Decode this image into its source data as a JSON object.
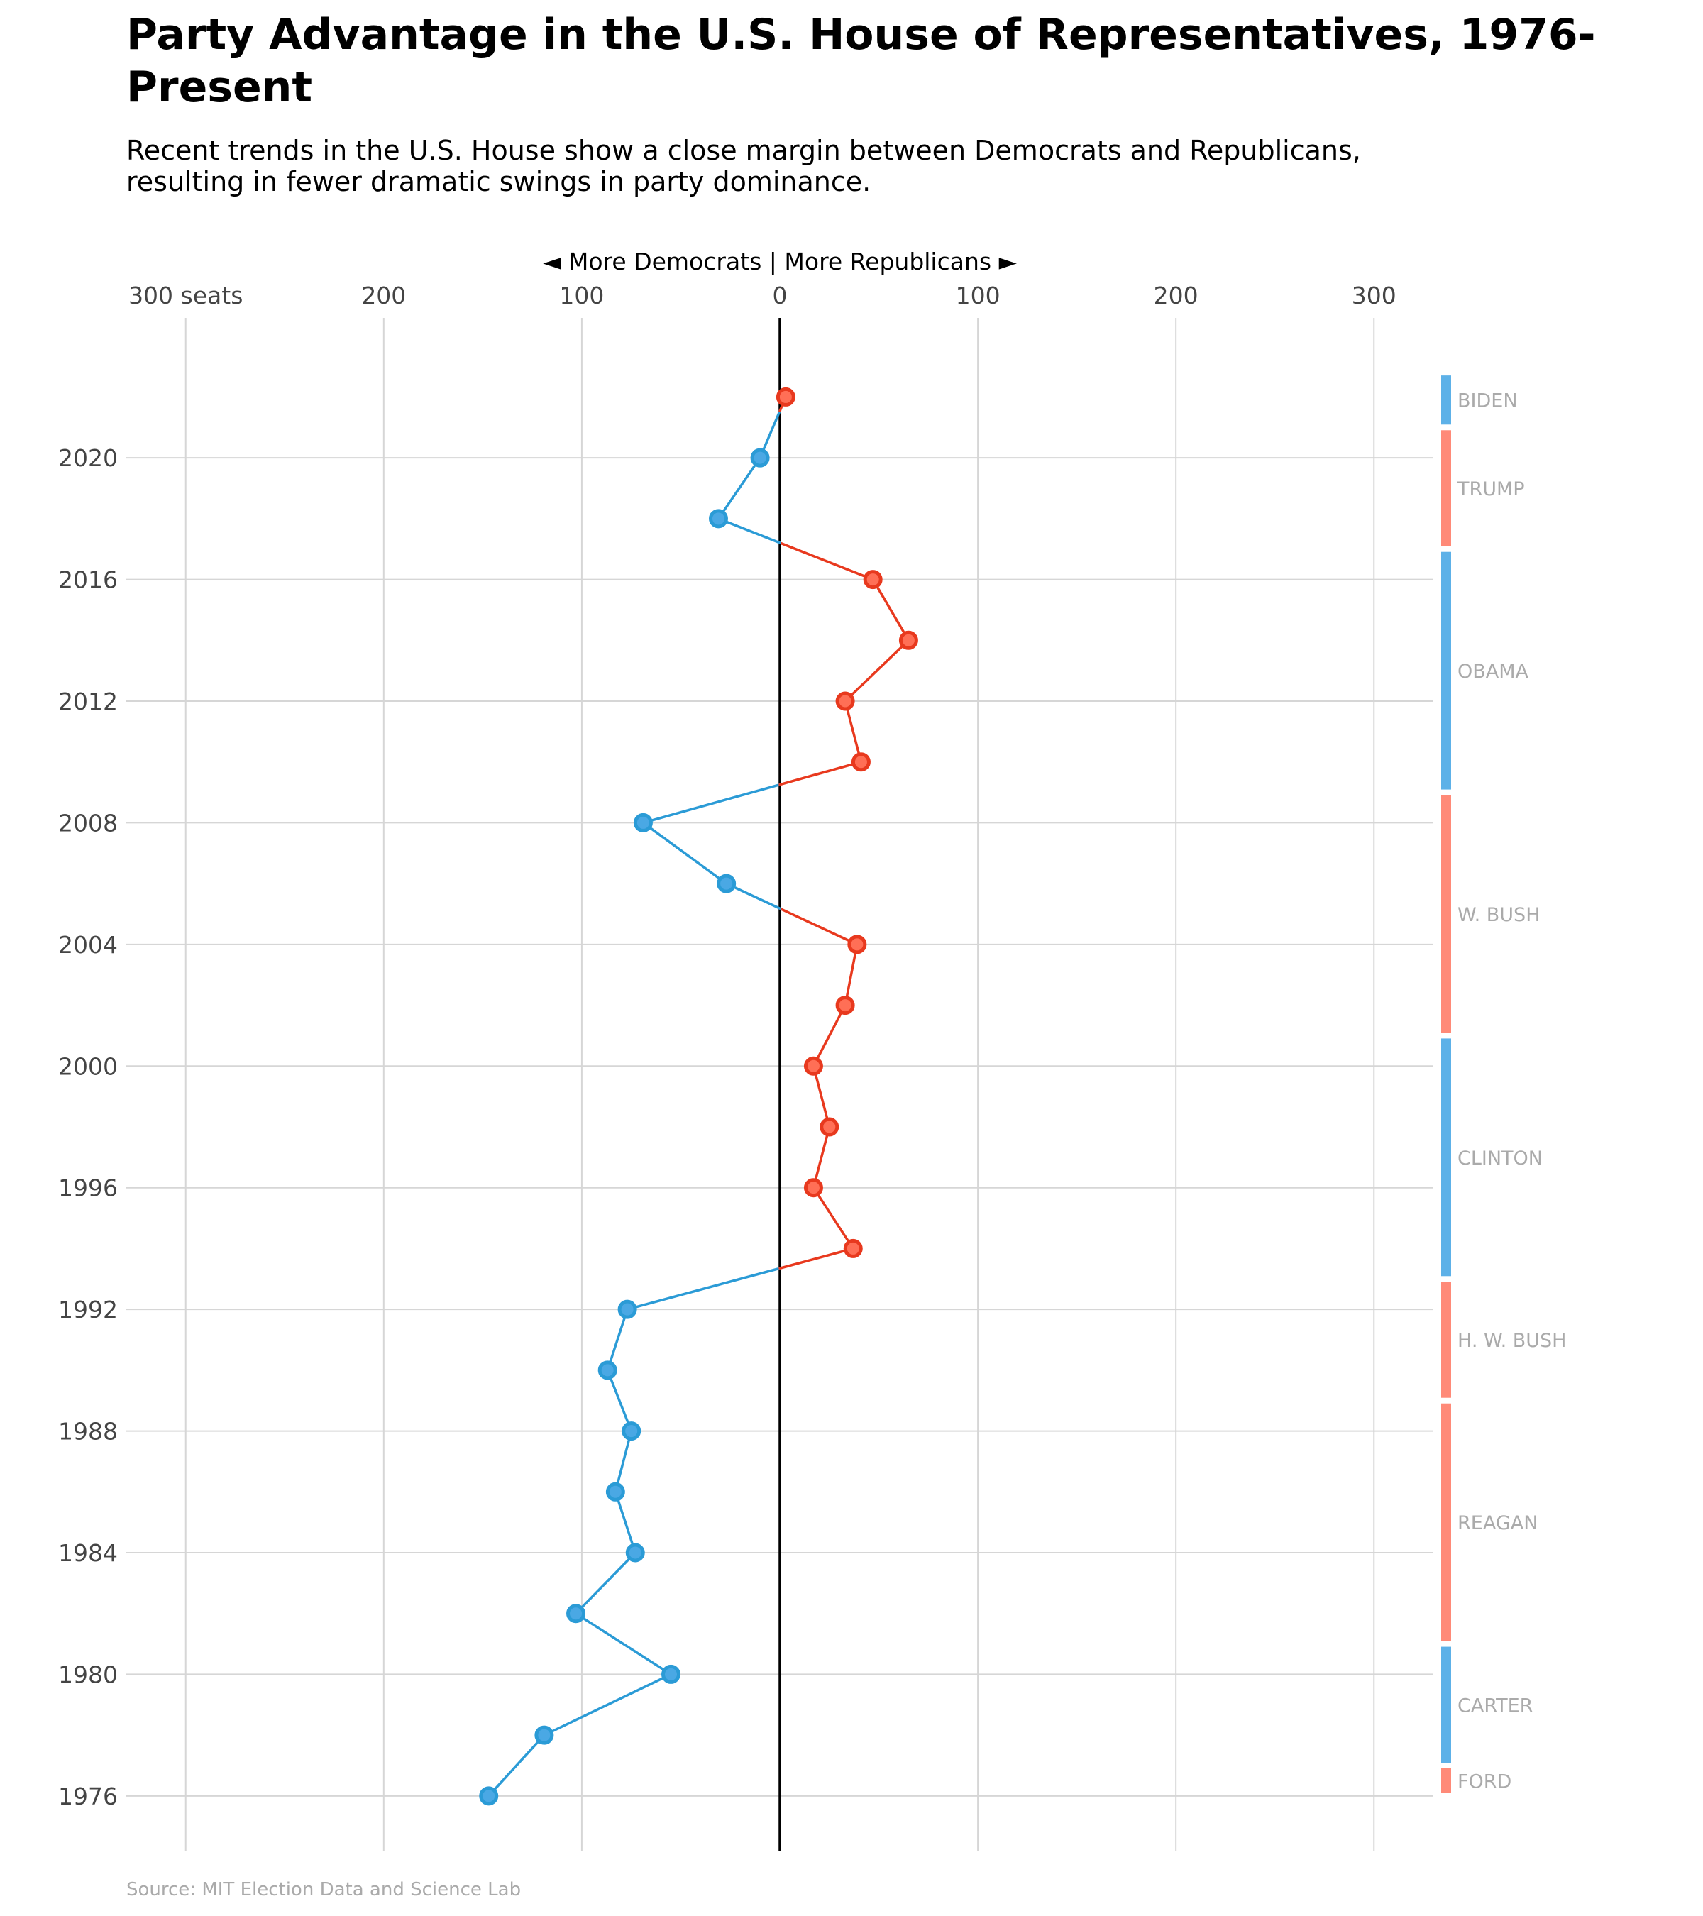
{
  "title": "Party Advantage in the U.S. House of Representatives, 1976-Present",
  "subtitle": "Recent trends in the U.S. House show a close margin between Democrats and Republicans, resulting in fewer dramatic swings in party dominance.",
  "source": "Source: MIT Election Data and Science Lab",
  "colors": {
    "democrat": "#2b9bd6",
    "democrat_fill": "#4aa8e4",
    "republican": "#e8391e",
    "republican_fill": "#ff6f56",
    "democrat_bar": "#5db1e8",
    "republican_bar": "#ff8a78",
    "grid": "#d6d6d6",
    "axis": "#000000",
    "president_label": "#aaaaaa"
  },
  "chart_data": {
    "type": "line",
    "orientation": "vertical",
    "top_label": "◄ More Democrats   |  More Republicans ►",
    "x_tick_labels": [
      "300 seats",
      "200",
      "100",
      "0",
      "100",
      "200",
      "300"
    ],
    "x_ticks": [
      -300,
      -200,
      -100,
      0,
      100,
      200,
      300
    ],
    "xlim": [
      -330,
      330
    ],
    "y_ticks": [
      1976,
      1980,
      1984,
      1988,
      1992,
      1996,
      2000,
      2004,
      2008,
      2012,
      2016,
      2020
    ],
    "ylim": [
      1974.2,
      2024.6
    ],
    "grid": true,
    "points": [
      {
        "year": 1976,
        "margin": -147
      },
      {
        "year": 1978,
        "margin": -119
      },
      {
        "year": 1980,
        "margin": -55
      },
      {
        "year": 1982,
        "margin": -103
      },
      {
        "year": 1984,
        "margin": -73
      },
      {
        "year": 1986,
        "margin": -83
      },
      {
        "year": 1988,
        "margin": -75
      },
      {
        "year": 1990,
        "margin": -87
      },
      {
        "year": 1992,
        "margin": -77
      },
      {
        "year": 1994,
        "margin": 37
      },
      {
        "year": 1996,
        "margin": 17
      },
      {
        "year": 1998,
        "margin": 25
      },
      {
        "year": 2000,
        "margin": 17
      },
      {
        "year": 2002,
        "margin": 33
      },
      {
        "year": 2004,
        "margin": 39
      },
      {
        "year": 2006,
        "margin": -27
      },
      {
        "year": 2008,
        "margin": -69
      },
      {
        "year": 2010,
        "margin": 41
      },
      {
        "year": 2012,
        "margin": 33
      },
      {
        "year": 2014,
        "margin": 65
      },
      {
        "year": 2016,
        "margin": 47
      },
      {
        "year": 2018,
        "margin": -31
      },
      {
        "year": 2020,
        "margin": -10
      },
      {
        "year": 2022,
        "margin": 3
      }
    ],
    "presidents": [
      {
        "name": "FORD",
        "start": 1976,
        "end": 1977,
        "party": "R"
      },
      {
        "name": "CARTER",
        "start": 1977,
        "end": 1981,
        "party": "D"
      },
      {
        "name": "REAGAN",
        "start": 1981,
        "end": 1989,
        "party": "R"
      },
      {
        "name": "H. W. BUSH",
        "start": 1989,
        "end": 1993,
        "party": "R"
      },
      {
        "name": "CLINTON",
        "start": 1993,
        "end": 2001,
        "party": "D"
      },
      {
        "name": "W. BUSH",
        "start": 2001,
        "end": 2009,
        "party": "R"
      },
      {
        "name": "OBAMA",
        "start": 2009,
        "end": 2017,
        "party": "D"
      },
      {
        "name": "TRUMP",
        "start": 2017,
        "end": 2021,
        "party": "R"
      },
      {
        "name": "BIDEN",
        "start": 2021,
        "end": 2022.8,
        "party": "D"
      }
    ]
  }
}
